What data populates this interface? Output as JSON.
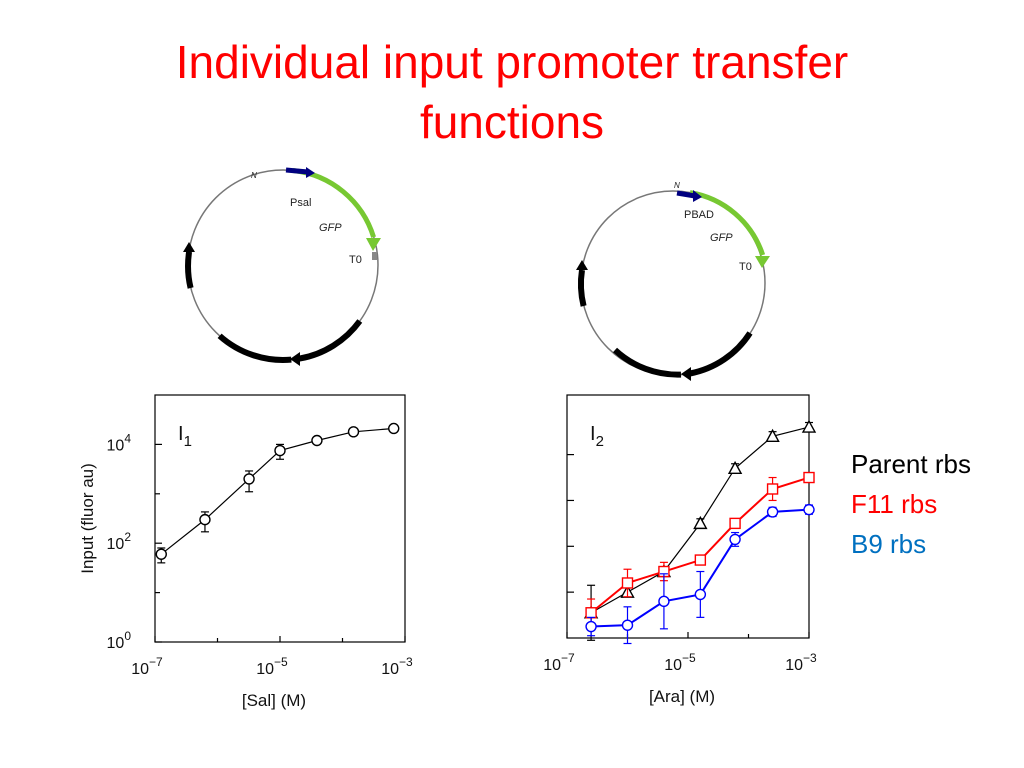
{
  "title": {
    "line1": "Individual input promoter transfer",
    "line2": "functions"
  },
  "plasmids": [
    {
      "origin": "N",
      "promoter": "Psal",
      "gene": "GFP",
      "terminator": "T0",
      "colors": {
        "backbone": "#777777",
        "promoter": "#000080",
        "gene": "#77c832",
        "marker": "#000000"
      }
    },
    {
      "origin": "N",
      "promoter": "PBAD",
      "gene": "GFP",
      "terminator": "T0",
      "colors": {
        "backbone": "#777777",
        "promoter": "#000080",
        "gene": "#77c832",
        "marker": "#000000"
      }
    }
  ],
  "legend": {
    "items": [
      {
        "label": "Parent rbs",
        "color": "#000000"
      },
      {
        "label": "F11 rbs",
        "color": "#ff0000"
      },
      {
        "label": "B9 rbs",
        "color": "#0070c0"
      }
    ]
  },
  "chart_data": [
    {
      "type": "line",
      "panel_label": "I",
      "panel_subscript": "1",
      "xlabel": "[Sal] (M)",
      "ylabel": "Input (fluor au)",
      "xscale": "log",
      "yscale": "log",
      "xlim": [
        1e-07,
        0.001
      ],
      "ylim": [
        1,
        100000
      ],
      "xticks": [
        1e-07,
        1e-05,
        0.001
      ],
      "yticks": [
        1,
        100,
        10000
      ],
      "xtick_labels": [
        {
          "base": "10",
          "exp": "−7"
        },
        {
          "base": "10",
          "exp": "−5"
        },
        {
          "base": "10",
          "exp": "−3"
        }
      ],
      "ytick_labels": [
        {
          "base": "10",
          "exp": "0"
        },
        {
          "base": "10",
          "exp": "2"
        },
        {
          "base": "10",
          "exp": "4"
        }
      ],
      "series": [
        {
          "color": "#000000",
          "marker": "circle",
          "x": [
            1.26e-07,
            6.3e-07,
            3.2e-06,
            1e-05,
            3.9e-05,
            0.00015,
            0.00066
          ],
          "y": [
            60,
            300,
            2000,
            7500,
            12000,
            18000,
            21000
          ],
          "err": [
            20,
            130,
            900,
            2500,
            1500,
            1500,
            1500
          ]
        }
      ]
    },
    {
      "type": "line",
      "panel_label": "I",
      "panel_subscript": "2",
      "xlabel": "[Ara] (M)",
      "ylabel": "",
      "xscale": "log",
      "xlim": [
        1e-07,
        0.001
      ],
      "ylim": [
        0,
        5.3
      ],
      "xticks": [
        1e-07,
        1e-05,
        0.001
      ],
      "yticks": [
        1,
        2,
        3,
        4
      ],
      "xtick_labels": [
        {
          "base": "10",
          "exp": "−7"
        },
        {
          "base": "10",
          "exp": "−5"
        },
        {
          "base": "10",
          "exp": "−3"
        }
      ],
      "ytick_labels": [],
      "series": [
        {
          "color": "#000000",
          "marker": "triangle",
          "x": [
            2.5e-07,
            1e-06,
            4e-06,
            1.6e-05,
            6e-05,
            0.00025,
            0.001
          ],
          "y": [
            0.55,
            1.0,
            1.45,
            2.5,
            3.7,
            4.4,
            4.6
          ],
          "err": [
            0.6,
            0.1,
            0.1,
            0.1,
            0.1,
            0.1,
            0.1
          ]
        },
        {
          "color": "#ff0000",
          "marker": "square",
          "x": [
            2.5e-07,
            1e-06,
            4e-06,
            1.6e-05,
            6e-05,
            0.00025,
            0.001
          ],
          "y": [
            0.55,
            1.2,
            1.45,
            1.7,
            2.5,
            3.25,
            3.5
          ],
          "err": [
            0.3,
            0.3,
            0.2,
            0.1,
            0.1,
            0.25,
            0.1
          ]
        },
        {
          "color": "#0000ff",
          "marker": "circle",
          "x": [
            2.5e-07,
            1e-06,
            4e-06,
            1.6e-05,
            6e-05,
            0.00025,
            0.001
          ],
          "y": [
            0.25,
            0.28,
            0.8,
            0.95,
            2.15,
            2.75,
            2.8
          ],
          "err": [
            0.2,
            0.4,
            0.6,
            0.5,
            0.15,
            0.1,
            0.1
          ]
        }
      ]
    }
  ]
}
